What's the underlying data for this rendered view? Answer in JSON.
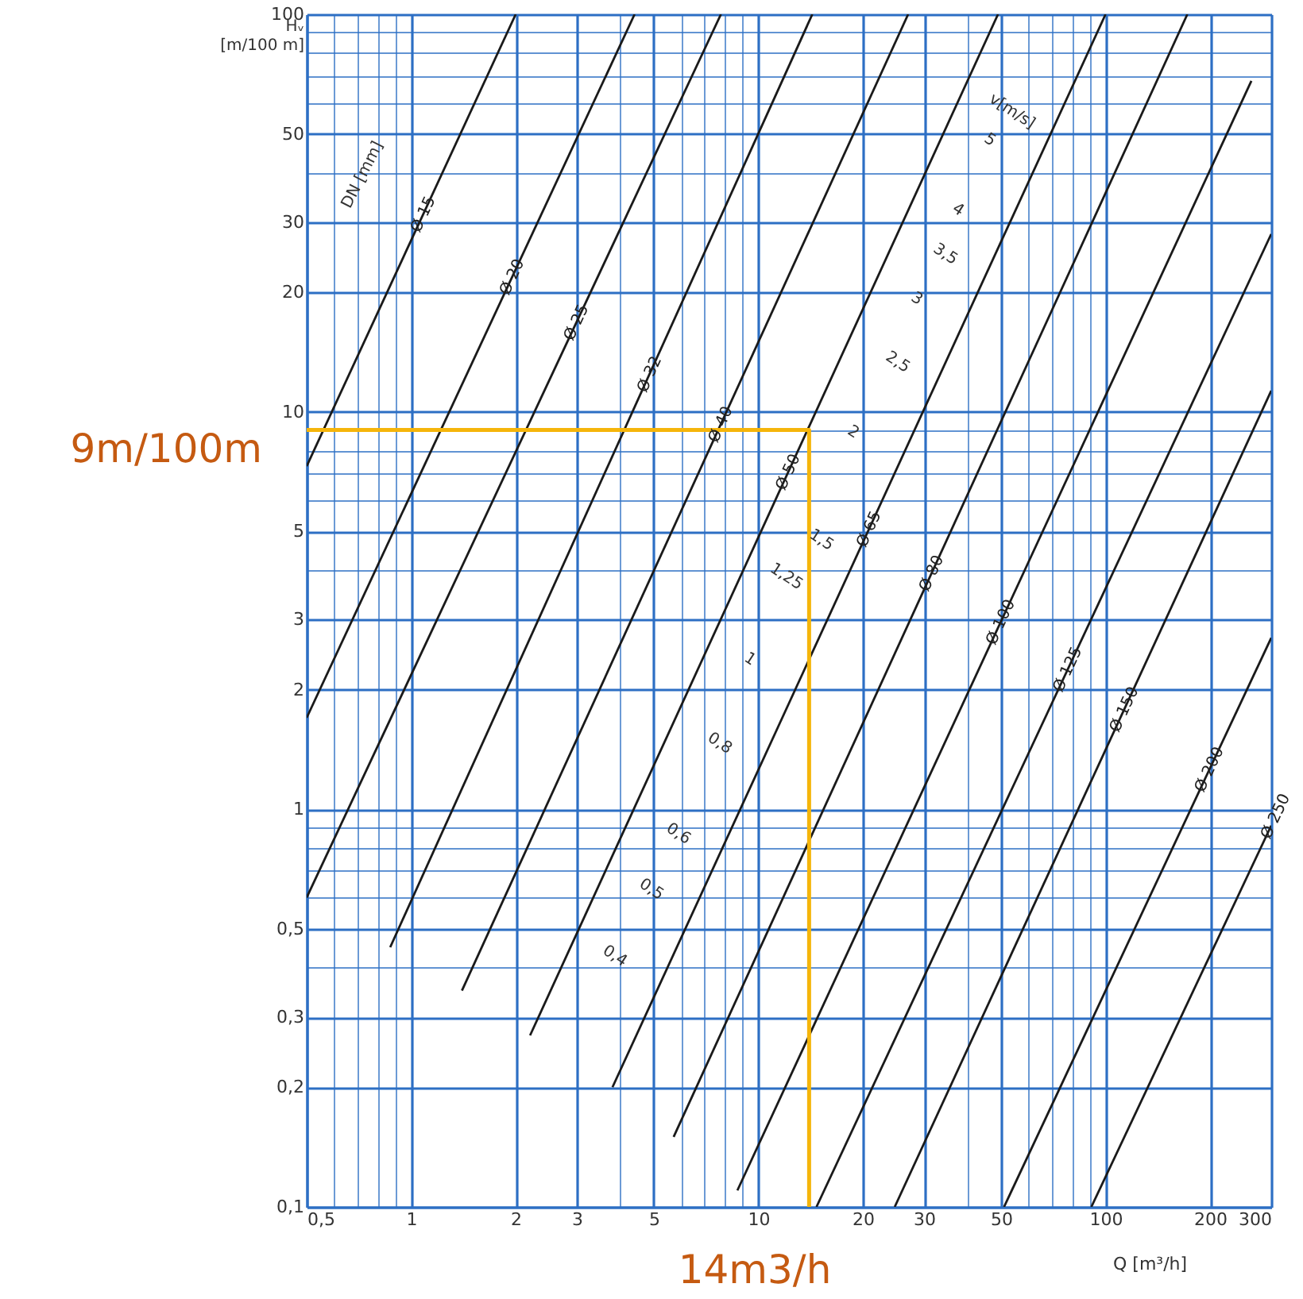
{
  "chart_data": {
    "type": "line",
    "xlabel": "Q [m³/h]",
    "ylabel": "Hᵥ [m/100 m]",
    "xlim": [
      0.5,
      300
    ],
    "ylim": [
      0.1,
      100
    ],
    "xticks": [
      {
        "value": 0.5,
        "label": "0,5"
      },
      {
        "value": 0.6,
        "label": null
      },
      {
        "value": 0.7,
        "label": null
      },
      {
        "value": 0.8,
        "label": null
      },
      {
        "value": 0.9,
        "label": null
      },
      1,
      2,
      3,
      {
        "value": 4,
        "label": null
      },
      5,
      {
        "value": 6,
        "label": null
      },
      {
        "value": 7,
        "label": null
      },
      {
        "value": 8,
        "label": null
      },
      {
        "value": 9,
        "label": null
      },
      10,
      20,
      30,
      {
        "value": 40,
        "label": null
      },
      50,
      {
        "value": 60,
        "label": null
      },
      {
        "value": 70,
        "label": null
      },
      {
        "value": 80,
        "label": null
      },
      {
        "value": 90,
        "label": null
      },
      100,
      200,
      300
    ],
    "yticks": [
      {
        "value": 0.1,
        "label": "0,1"
      },
      {
        "value": 0.2,
        "label": "0,2"
      },
      {
        "value": 0.3,
        "label": "0,3"
      },
      {
        "value": 0.4,
        "label": null
      },
      {
        "value": 0.5,
        "label": "0,5"
      },
      {
        "value": 0.6,
        "label": null
      },
      {
        "value": 0.7,
        "label": null
      },
      {
        "value": 0.8,
        "label": null
      },
      {
        "value": 0.9,
        "label": null
      },
      1,
      2,
      3,
      {
        "value": 4,
        "label": null
      },
      5,
      {
        "value": 6,
        "label": null
      },
      {
        "value": 7,
        "label": null
      },
      {
        "value": 8,
        "label": null
      },
      {
        "value": 9,
        "label": null
      },
      10,
      20,
      30,
      {
        "value": 40,
        "label": null
      },
      50,
      {
        "value": 60,
        "label": null
      },
      {
        "value": 70,
        "label": null
      },
      {
        "value": 80,
        "label": null
      },
      {
        "value": 90,
        "label": null
      },
      100
    ],
    "log": "xy",
    "grid": true,
    "series": [
      {
        "name": "Ø 15",
        "color": "#1a1a1a",
        "x": [
          0.5,
          2.0
        ],
        "values": [
          7.3,
          100
        ]
      },
      {
        "name": "Ø 20",
        "color": "#1a1a1a",
        "x": [
          0.5,
          4.4
        ],
        "values": [
          1.7,
          100
        ]
      },
      {
        "name": "Ø 25",
        "color": "#1a1a1a",
        "x": [
          0.5,
          7.8
        ],
        "values": [
          0.6,
          100
        ]
      },
      {
        "name": "Ø 32",
        "color": "#1a1a1a",
        "x": [
          0.87,
          14.3
        ],
        "values": [
          0.45,
          100
        ]
      },
      {
        "name": "Ø 40",
        "color": "#1a1a1a",
        "x": [
          1.4,
          27
        ],
        "values": [
          0.35,
          100
        ]
      },
      {
        "name": "Ø 50",
        "color": "#1a1a1a",
        "x": [
          2.2,
          49
        ],
        "values": [
          0.27,
          100
        ]
      },
      {
        "name": "Ø 65",
        "color": "#1a1a1a",
        "x": [
          3.8,
          100
        ],
        "values": [
          0.2,
          100
        ]
      },
      {
        "name": "Ø 80",
        "color": "#1a1a1a",
        "x": [
          5.7,
          172
        ],
        "values": [
          0.15,
          100
        ]
      },
      {
        "name": "Ø 100",
        "color": "#1a1a1a",
        "x": [
          8.7,
          263
        ],
        "values": [
          0.11,
          68
        ]
      },
      {
        "name": "Ø 125",
        "color": "#1a1a1a",
        "x": [
          14.7,
          300
        ],
        "values": [
          0.1,
          28
        ]
      },
      {
        "name": "Ø 150",
        "color": "#1a1a1a",
        "x": [
          24.7,
          300
        ],
        "values": [
          0.1,
          11.3
        ]
      },
      {
        "name": "Ø 200",
        "color": "#1a1a1a",
        "x": [
          51,
          300
        ],
        "values": [
          0.1,
          2.7
        ]
      },
      {
        "name": "Ø 250",
        "color": "#1a1a1a",
        "x": [
          91,
          300
        ],
        "values": [
          0.1,
          0.91
        ]
      },
      {
        "color": "#f5b50a",
        "x": [
          0.5,
          14,
          14
        ],
        "values": [
          9,
          9,
          0.1
        ]
      }
    ],
    "annotations": [
      "DN [mm]",
      "v[m/s]",
      "5",
      "4",
      "3,5",
      "3",
      "2,5",
      "2",
      "1,5",
      "1,25",
      "1",
      "0,8",
      "0,6",
      "0,5",
      "0,4",
      "9m/100m",
      "14m3/h"
    ]
  }
}
